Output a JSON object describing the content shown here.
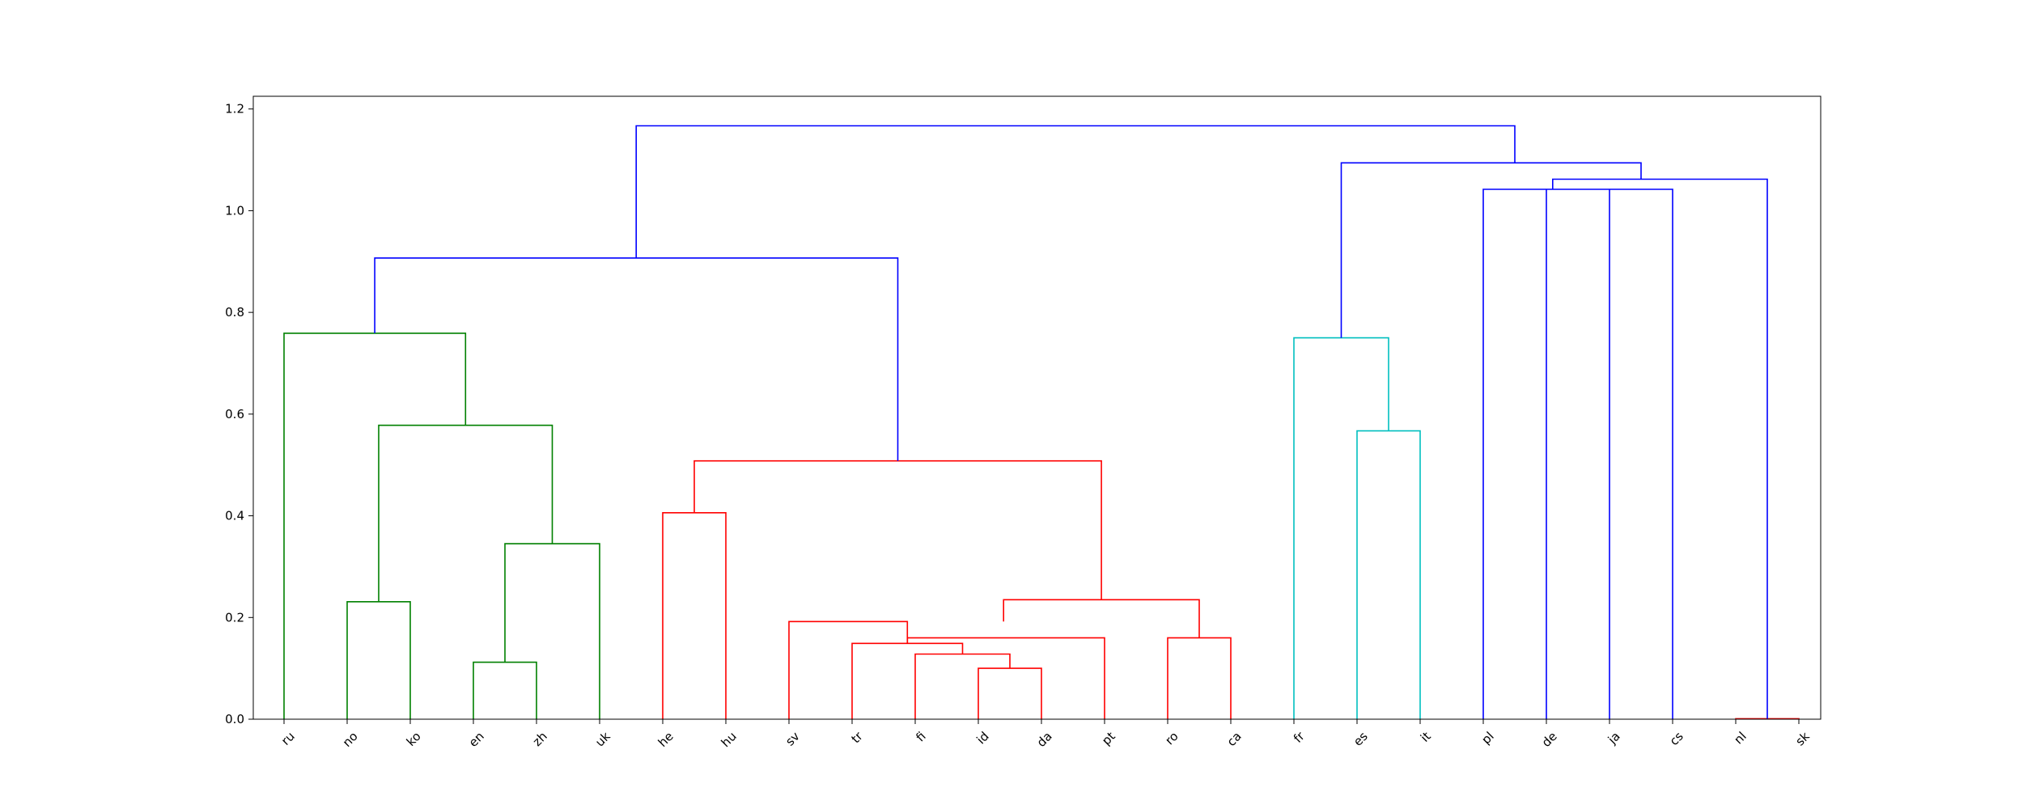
{
  "chart_data": {
    "type": "dendrogram",
    "title": "",
    "xlabel": "",
    "ylabel": "",
    "ylim": [
      0,
      1.225
    ],
    "yticks": [
      "0.0",
      "0.2",
      "0.4",
      "0.6",
      "0.8",
      "1.0",
      "1.2"
    ],
    "ytick_values": [
      0,
      0.2,
      0.4,
      0.6,
      0.8,
      1.0,
      1.2
    ],
    "leaves": [
      "ru",
      "no",
      "ko",
      "en",
      "zh",
      "uk",
      "he",
      "hu",
      "sv",
      "tr",
      "fi",
      "id",
      "da",
      "pt",
      "ro",
      "ca",
      "fr",
      "es",
      "it",
      "pl",
      "de",
      "ja",
      "cs",
      "nl",
      "sk"
    ],
    "colors": {
      "green": "#008000",
      "red": "#ff0000",
      "cyan": "#00bfbf",
      "blue": "#0000ff",
      "axis": "#000000"
    },
    "links": [
      {
        "x": [
          1,
          1,
          2,
          2
        ],
        "y": [
          0,
          0.231,
          0.231,
          0
        ],
        "color": "green"
      },
      {
        "x": [
          3,
          3,
          4,
          4
        ],
        "y": [
          0,
          0.112,
          0.112,
          0
        ],
        "color": "green"
      },
      {
        "x": [
          3.5,
          3.5,
          5,
          5
        ],
        "y": [
          0.112,
          0.345,
          0.345,
          0
        ],
        "color": "green"
      },
      {
        "x": [
          1.5,
          1.5,
          4.25,
          4.25
        ],
        "y": [
          0.231,
          0.578,
          0.578,
          0.345
        ],
        "color": "green"
      },
      {
        "x": [
          0,
          0,
          2.875,
          2.875
        ],
        "y": [
          0,
          0.759,
          0.759,
          0.578
        ],
        "color": "green"
      },
      {
        "x": [
          6,
          6,
          7,
          7
        ],
        "y": [
          0,
          0.406,
          0.406,
          0
        ],
        "color": "red"
      },
      {
        "x": [
          11,
          11,
          12,
          12
        ],
        "y": [
          0,
          0.1,
          0.1,
          0
        ],
        "color": "red"
      },
      {
        "x": [
          10,
          10,
          11.5,
          11.5
        ],
        "y": [
          0,
          0.128,
          0.128,
          0.1
        ],
        "color": "red"
      },
      {
        "x": [
          9,
          9,
          10.75,
          10.75
        ],
        "y": [
          0,
          0.149,
          0.149,
          0.128
        ],
        "color": "red"
      },
      {
        "x": [
          8,
          8,
          9.875,
          9.875
        ],
        "y": [
          0,
          0.192,
          0.192,
          0.149
        ],
        "color": "red"
      },
      {
        "x": [
          13,
          13,
          9.875,
          9.875
        ],
        "y": [
          0,
          0.16,
          0.16,
          0.149
        ],
        "color": "red"
      },
      {
        "x": [
          14,
          14,
          15,
          15
        ],
        "y": [
          0,
          0.16,
          0.16,
          0
        ],
        "color": "red"
      },
      {
        "x": [
          11.4,
          11.4,
          14.5,
          14.5
        ],
        "y": [
          0.192,
          0.235,
          0.235,
          0.16
        ],
        "color": "red"
      },
      {
        "x": [
          6.5,
          6.5,
          12.95,
          12.95
        ],
        "y": [
          0.406,
          0.508,
          0.508,
          0.235
        ],
        "color": "red"
      },
      {
        "x": [
          17,
          17,
          18,
          18
        ],
        "y": [
          0,
          0.567,
          0.567,
          0
        ],
        "color": "cyan"
      },
      {
        "x": [
          16,
          16,
          17.5,
          17.5
        ],
        "y": [
          0,
          0.75,
          0.75,
          0.567
        ],
        "color": "cyan"
      },
      {
        "x": [
          23,
          23,
          24,
          24
        ],
        "y": [
          0,
          0.001,
          0.001,
          0
        ],
        "color": "red"
      },
      {
        "x": [
          1.4375,
          1.4375,
          9.725,
          9.725
        ],
        "y": [
          0.759,
          0.907,
          0.907,
          0.508
        ],
        "color": "blue"
      },
      {
        "x": [
          19,
          19,
          22,
          22
        ],
        "y": [
          0,
          1.042,
          1.042,
          0
        ],
        "color": "blue"
      },
      {
        "x": [
          20,
          20,
          20,
          20
        ],
        "y": [
          0,
          1.042,
          1.042,
          1.042
        ],
        "color": "blue"
      },
      {
        "x": [
          21,
          21,
          21,
          21
        ],
        "y": [
          0,
          1.042,
          1.042,
          1.042
        ],
        "color": "blue"
      },
      {
        "x": [
          20.1,
          20.1,
          23.5,
          23.5
        ],
        "y": [
          1.042,
          1.062,
          1.062,
          0.001
        ],
        "color": "blue"
      },
      {
        "x": [
          16.75,
          16.75,
          21.5,
          21.5
        ],
        "y": [
          0.75,
          1.094,
          1.094,
          1.062
        ],
        "color": "blue"
      },
      {
        "x": [
          5.58,
          5.58,
          19.5,
          19.5
        ],
        "y": [
          0.907,
          1.167,
          1.167,
          1.094
        ],
        "color": "blue"
      }
    ]
  }
}
